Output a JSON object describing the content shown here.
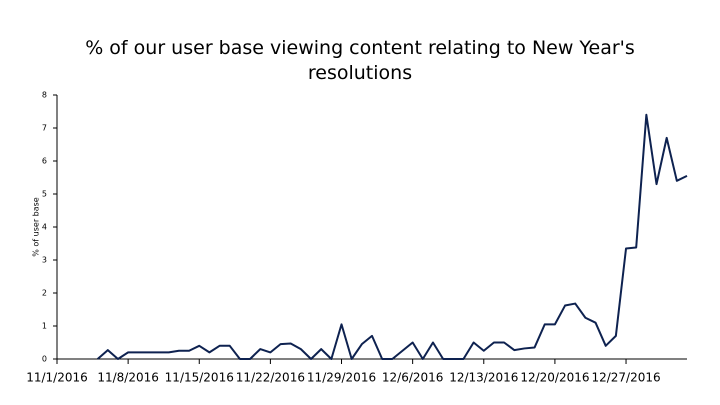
{
  "chart_data": {
    "type": "line",
    "title": "% of our user base viewing content relating to New Year's resolutions",
    "y_label": "% of user base",
    "x": [
      "11/1/2016",
      "11/2/2016",
      "11/3/2016",
      "11/4/2016",
      "11/5/2016",
      "11/6/2016",
      "11/7/2016",
      "11/8/2016",
      "11/9/2016",
      "11/10/2016",
      "11/11/2016",
      "11/12/2016",
      "11/13/2016",
      "11/14/2016",
      "11/15/2016",
      "11/16/2016",
      "11/17/2016",
      "11/18/2016",
      "11/19/2016",
      "11/20/2016",
      "11/21/2016",
      "11/22/2016",
      "11/23/2016",
      "11/24/2016",
      "11/25/2016",
      "11/26/2016",
      "11/27/2016",
      "11/28/2016",
      "11/29/2016",
      "11/30/2016",
      "12/1/2016",
      "12/2/2016",
      "12/3/2016",
      "12/4/2016",
      "12/5/2016",
      "12/6/2016",
      "12/7/2016",
      "12/8/2016",
      "12/9/2016",
      "12/10/2016",
      "12/11/2016",
      "12/12/2016",
      "12/13/2016",
      "12/14/2016",
      "12/15/2016",
      "12/16/2016",
      "12/17/2016",
      "12/18/2016",
      "12/19/2016",
      "12/20/2016",
      "12/21/2016",
      "12/22/2016",
      "12/23/2016",
      "12/24/2016",
      "12/25/2016",
      "12/26/2016",
      "12/27/2016",
      "12/28/2016",
      "12/29/2016",
      "12/30/2016",
      "12/31/2016",
      "1/1/2017",
      "1/2/2017"
    ],
    "series": [
      {
        "name": "% of user base",
        "color": "#0e2250",
        "values": [
          null,
          null,
          null,
          null,
          0,
          0.27,
          0,
          0.2,
          0.2,
          0.2,
          0.2,
          0.2,
          0.25,
          0.25,
          0.4,
          0.2,
          0.4,
          0.4,
          0,
          0,
          0.3,
          0.2,
          0.45,
          0.47,
          0.3,
          0,
          0.3,
          0,
          1.05,
          0,
          0.45,
          0.7,
          0,
          0,
          0.25,
          0.5,
          0,
          0.5,
          0,
          0,
          0,
          0.5,
          0.25,
          0.5,
          0.5,
          0.27,
          0.32,
          0.35,
          1.05,
          1.05,
          1.62,
          1.68,
          1.25,
          1.1,
          0.4,
          0.7,
          3.35,
          3.38,
          7.4,
          5.3,
          6.7,
          5.4,
          5.55
        ]
      }
    ],
    "xlim": [
      "11/1/2016",
      "1/2/2017"
    ],
    "xticks": [
      "11/1/2016",
      "11/8/2016",
      "11/15/2016",
      "11/22/2016",
      "11/29/2016",
      "12/6/2016",
      "12/13/2016",
      "12/20/2016",
      "12/27/2016"
    ],
    "ylim": [
      0,
      8
    ],
    "yticks": [
      0,
      1,
      2,
      3,
      4,
      5,
      6,
      7,
      8
    ]
  }
}
